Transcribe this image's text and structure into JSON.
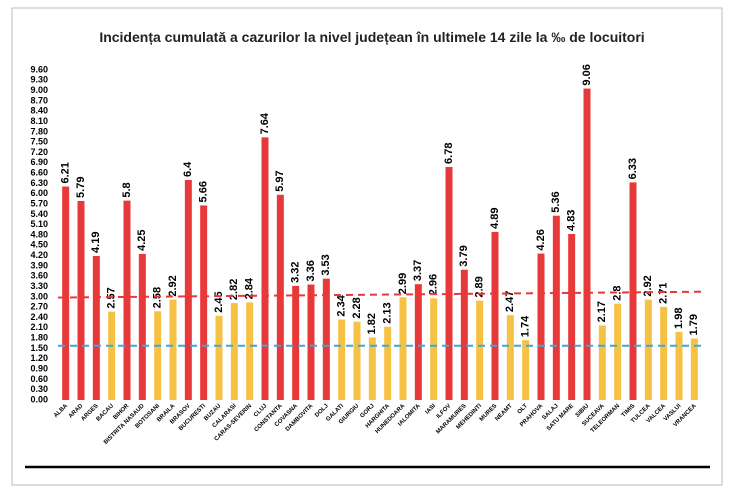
{
  "chart_data": {
    "type": "bar",
    "title": "Incidența cumulată a cazurilor la nivel județean în ultimele 14 zile la ‰ de locuitori",
    "categories": [
      "ALBA",
      "ARAD",
      "ARGES",
      "BACAU",
      "BIHOR",
      "BISTRITA NASAUD",
      "BOTOSANI",
      "BRAILA",
      "BRASOV",
      "BUCURESTI",
      "BUZAU",
      "CALARASI",
      "CARAS-SEVERIN",
      "CLUJ",
      "CONSTANTA",
      "COVASNA",
      "DAMBOVITA",
      "DOLJ",
      "GALATI",
      "GIURGIU",
      "GORJ",
      "HARGHITA",
      "HUNEDOARA",
      "IALOMITA",
      "IASI",
      "ILFOV",
      "MARAMURES",
      "MEHEDINTI",
      "MURES",
      "NEAMT",
      "OLT",
      "PRAHOVA",
      "SALAJ",
      "SATU MARE",
      "SIBIU",
      "SUCEAVA",
      "TELEORMAN",
      "TIMIS",
      "TULCEA",
      "VALCEA",
      "VASLUI",
      "VRANCEA"
    ],
    "values": [
      6.21,
      5.79,
      4.19,
      2.57,
      5.8,
      4.25,
      2.58,
      2.92,
      6.4,
      5.66,
      2.45,
      2.82,
      2.84,
      7.64,
      5.97,
      3.32,
      3.36,
      3.53,
      2.34,
      2.28,
      1.82,
      2.13,
      2.99,
      3.37,
      2.96,
      6.78,
      3.79,
      2.89,
      4.89,
      2.47,
      1.74,
      4.26,
      5.36,
      4.83,
      9.06,
      2.17,
      2.8,
      6.33,
      2.92,
      2.71,
      1.98,
      1.79
    ],
    "colors": [
      "#e8393a",
      "#e8393a",
      "#e8393a",
      "#f6c244",
      "#e8393a",
      "#e8393a",
      "#f6c244",
      "#f6c244",
      "#e8393a",
      "#e8393a",
      "#f6c244",
      "#f6c244",
      "#f6c244",
      "#e8393a",
      "#e8393a",
      "#e8393a",
      "#e8393a",
      "#e8393a",
      "#f6c244",
      "#f6c244",
      "#f6c244",
      "#f6c244",
      "#f6c244",
      "#e8393a",
      "#f6c244",
      "#e8393a",
      "#e8393a",
      "#f6c244",
      "#e8393a",
      "#f6c244",
      "#f6c244",
      "#e8393a",
      "#e8393a",
      "#e8393a",
      "#e8393a",
      "#f6c244",
      "#f6c244",
      "#e8393a",
      "#f6c244",
      "#f6c244",
      "#f6c244",
      "#f6c244"
    ],
    "reference_lines": [
      {
        "color": "#e8393a",
        "values": [
          2.98,
          3.15
        ]
      },
      {
        "color": "#3fa6d9",
        "values": [
          1.58,
          1.58
        ]
      }
    ],
    "ylim": [
      0,
      9.6
    ],
    "yticks": [
      {
        "value": 0,
        "label": "0.00"
      },
      {
        "value": 0.3,
        "label": "0.30"
      },
      {
        "value": 0.6,
        "label": "0.60"
      },
      {
        "value": 0.9,
        "label": "0.90"
      },
      {
        "value": 1.2,
        "label": "1.20"
      },
      {
        "value": 1.5,
        "label": "1.50"
      },
      {
        "value": 1.8,
        "label": "1.80"
      },
      {
        "value": 2.1,
        "label": "2.10"
      },
      {
        "value": 2.4,
        "label": "2.40"
      },
      {
        "value": 2.7,
        "label": "2.70"
      },
      {
        "value": 3,
        "label": "3.00"
      },
      {
        "value": 3.3,
        "label": "3.30"
      },
      {
        "value": 3.6,
        "label": "3.60"
      },
      {
        "value": 3.9,
        "label": "3.90"
      },
      {
        "value": 4.2,
        "label": "4.20"
      },
      {
        "value": 4.5,
        "label": "4.50"
      },
      {
        "value": 4.8,
        "label": "4.80"
      },
      {
        "value": 5.1,
        "label": "5.10"
      },
      {
        "value": 5.4,
        "label": "5.40"
      },
      {
        "value": 5.7,
        "label": "5.70"
      },
      {
        "value": 6,
        "label": "6.00"
      },
      {
        "value": 6.3,
        "label": "6.30"
      },
      {
        "value": 6.6,
        "label": "6.60"
      },
      {
        "value": 6.9,
        "label": "6.90"
      },
      {
        "value": 7.2,
        "label": "7.20"
      },
      {
        "value": 7.5,
        "label": "7.50"
      },
      {
        "value": 7.8,
        "label": "7.80"
      },
      {
        "value": 8.1,
        "label": "8.10"
      },
      {
        "value": 8.4,
        "label": "8.40"
      },
      {
        "value": 8.7,
        "label": "8.70"
      },
      {
        "value": 9,
        "label": "9.00"
      },
      {
        "value": 9.3,
        "label": "9.30"
      },
      {
        "value": 9.6,
        "label": "9.60"
      }
    ],
    "grid": false
  }
}
